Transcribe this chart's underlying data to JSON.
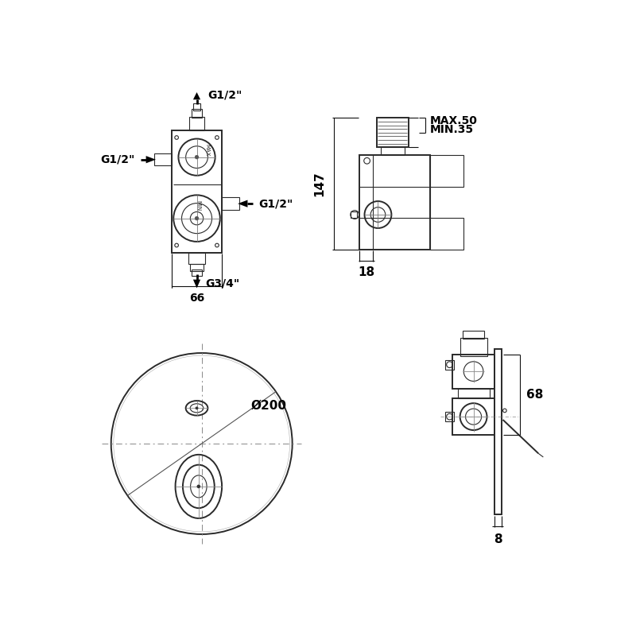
{
  "bg_color": "#ffffff",
  "line_color": "#2a2a2a",
  "dim_color": "#111111",
  "fig_width": 8.0,
  "fig_height": 8.0,
  "dpi": 100,
  "labels": {
    "g12_top": "G1/2\"",
    "g12_left": "G1/2\"",
    "g12_right": "G1/2\"",
    "g34_bottom": "G3/4\"",
    "dim_66": "66",
    "dim_147": "147",
    "dim_18": "18",
    "dim_max50": "MAX.50",
    "dim_min35": "MIN.35",
    "dim_200": "Ø200",
    "dim_68": "68",
    "dim_8": "8"
  }
}
